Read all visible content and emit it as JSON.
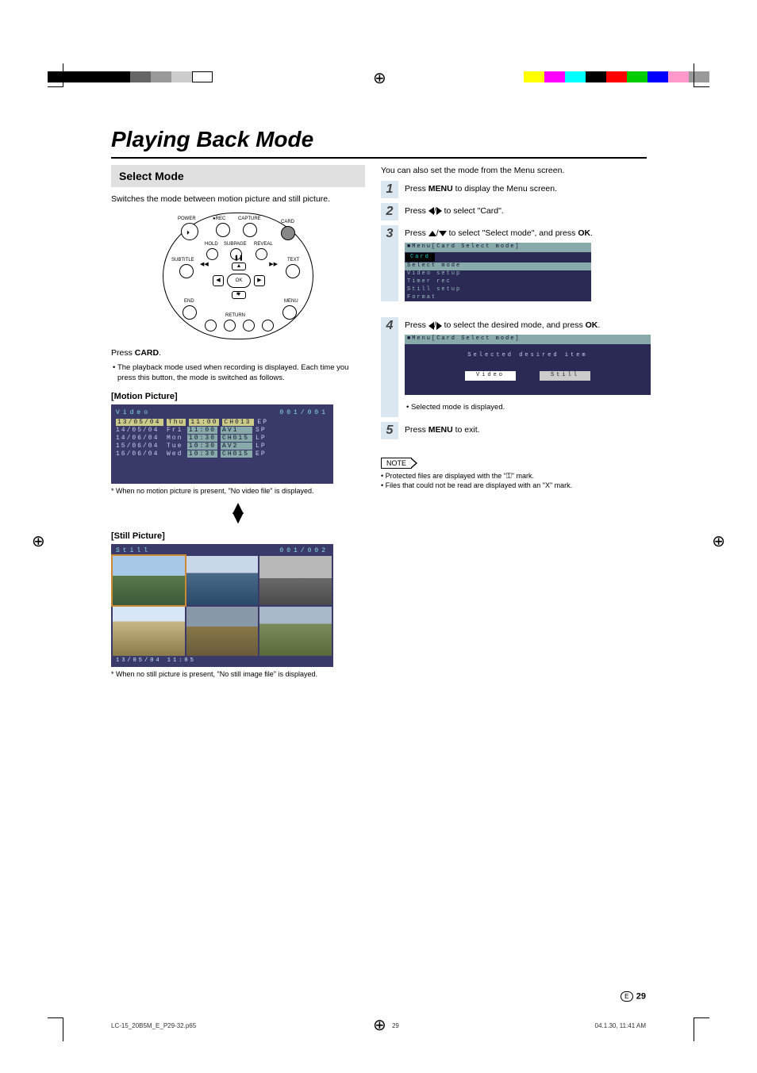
{
  "print_marks": {
    "left_colors": [
      "#000000",
      "#000000",
      "#000000",
      "#000000",
      "#666666",
      "#999999",
      "#cccccc",
      "#ffffff"
    ],
    "right_colors": [
      "#ffff00",
      "#ff00ff",
      "#00ffff",
      "#000000",
      "#ff0000",
      "#00cc00",
      "#0000ff",
      "#ff99cc",
      "#999999"
    ]
  },
  "title": "Playing Back Mode",
  "left": {
    "section": "Select Mode",
    "intro": "Switches the mode between motion picture and still picture.",
    "remote_labels": {
      "power": "POWER",
      "rec": "REC",
      "capture": "CAPTURE",
      "card": "CARD",
      "hold": "HOLD",
      "subpage": "SUBPAGE",
      "reveal": "REVEAL",
      "subtitle": "SUBTITLE",
      "text": "TEXT",
      "end": "END",
      "menu": "MENU",
      "ok": "OK",
      "return": "RETURN"
    },
    "press_card_label": "Press ",
    "press_card_bold": "CARD",
    "press_card_after": ".",
    "card_note": "The playback mode used when recording is displayed. Each time you press this button, the mode is switched as follows.",
    "motion_header": "[Motion Picture]",
    "osd_video_title": "Video",
    "osd_video_page": "001/001",
    "video_rows": [
      {
        "date": "13/05/04",
        "day": "Thu",
        "time": "11:00",
        "ch": "CH013",
        "mode": "EP",
        "sel": true
      },
      {
        "date": "14/05/04",
        "day": "Fri",
        "time": "11:00",
        "ch": "AV1",
        "mode": "SP",
        "sel": false
      },
      {
        "date": "14/06/04",
        "day": "Mon",
        "time": "10:30",
        "ch": "CH015",
        "mode": "LP",
        "sel": false
      },
      {
        "date": "15/06/04",
        "day": "Tue",
        "time": "10:30",
        "ch": "AV2",
        "mode": "LP",
        "sel": false
      },
      {
        "date": "16/06/04",
        "day": "Wed",
        "time": "10:30",
        "ch": "CH015",
        "mode": "EP",
        "sel": false
      }
    ],
    "motion_footnote": "*  When no motion picture is present, \"No video file\" is displayed.",
    "still_header": "[Still Picture]",
    "osd_still_title": "Still",
    "osd_still_page": "001/002",
    "still_footer_text": "13/05/04  11:05",
    "still_footnote": "*  When no still picture is present, \"No still image file\" is displayed."
  },
  "right": {
    "intro": "You can also set the mode from the Menu screen.",
    "steps": [
      {
        "n": "1",
        "pre": "Press ",
        "bold": "MENU",
        "post": " to display the Menu screen."
      },
      {
        "n": "2",
        "txt": "Press __LR__ to select \"Card\"."
      },
      {
        "n": "3",
        "txt": "Press __UD__ to select \"Select mode\", and press ",
        "bold": "OK",
        "post": "."
      },
      {
        "n": "4",
        "txt": "Press __LR__ to select the desired mode, and press ",
        "bold": "OK",
        "post": "."
      },
      {
        "n": "5",
        "pre": "Press ",
        "bold": "MENU",
        "post": " to exit."
      }
    ],
    "menu3": {
      "bar": "Menu[Card  Select  mode]",
      "sub": "Card",
      "items": [
        {
          "t": "Select  mode",
          "sel": true
        },
        {
          "t": "Video  setup",
          "sel": false
        },
        {
          "t": "Timer  rec",
          "sel": false
        },
        {
          "t": "Still  setup",
          "sel": false
        },
        {
          "t": "Format",
          "sel": false
        }
      ]
    },
    "menu4": {
      "bar": "Menu[Card  Select  mode]",
      "msg": "Selected  desired  item",
      "opts": [
        {
          "t": "Video",
          "sel": true
        },
        {
          "t": "Still",
          "sel": false
        }
      ],
      "bullet": "Selected mode is displayed."
    },
    "note_label": "NOTE",
    "notes": [
      "Protected files are displayed with the \"⚿\" mark.",
      "Files that could not be read are displayed with an \"X\" mark."
    ]
  },
  "page_number": "29",
  "page_letter": "E",
  "footer": {
    "file": "LC-15_20B5M_E_P29-32.p65",
    "page": "29",
    "ts": "04.1.30, 11:41 AM"
  }
}
